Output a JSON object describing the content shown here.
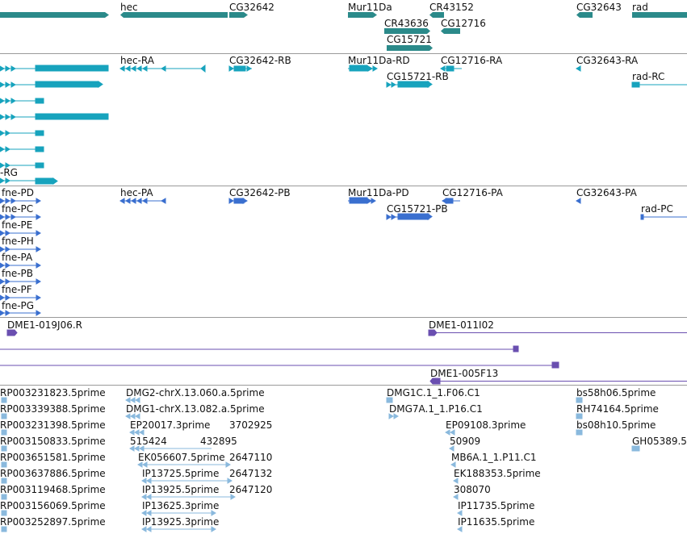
{
  "colors": {
    "gene": "#2b8a8a",
    "transcript_rna": "#17a3bd",
    "transcript_protein": "#3a6fcf",
    "cdna": "#6a4fb0",
    "est": "#8ab9dd",
    "divider": "#9a9a9a"
  },
  "gene_track": {
    "labels": [
      "hec",
      "CG32642",
      "Mur11Da",
      "CR43152",
      "CG32643",
      "rad",
      "CR43636",
      "CG12716",
      "CG15721"
    ]
  },
  "rna_track": {
    "labels": [
      "hec-RA",
      "CG32642-RB",
      "Mur11Da-RD",
      "CG12716-RA",
      "CG32643-RA",
      "CG15721-RB",
      "rad-RC",
      "-RG"
    ]
  },
  "protein_track": {
    "labels": [
      "fne-PD",
      "hec-PA",
      "CG32642-PB",
      "Mur11Da-PD",
      "CG12716-PA",
      "CG32643-PA",
      "fne-PC",
      "CG15721-PB",
      "rad-PC",
      "fne-PE",
      "fne-PH",
      "fne-PA",
      "fne-PB",
      "fne-PF",
      "fne-PG"
    ]
  },
  "cdna_track": {
    "labels": [
      "DME1-019J06.R",
      "DME1-011I02",
      "DME1-005F13"
    ]
  },
  "est_track": {
    "labels": [
      "RP003231823.5prime",
      "DMG2-chrX.13.060.a.5prime",
      "DMG1C.1_1.F06.C1",
      "bs58h06.5prime",
      "RP003339388.5prime",
      "DMG1-chrX.13.082.a.5prime",
      "DMG7A.1_1.P16.C1",
      "RH74164.5prime",
      "RP003231398.5prime",
      "EP20017.3prime",
      "3702925",
      "EP09108.3prime",
      "bs08h10.5prime",
      "RP003150833.5prime",
      "515424",
      "432895",
      "50909",
      "GH05389.5",
      "RP003651581.5prime",
      "EK056607.5prime",
      "2647110",
      "MB6A.1_1.P11.C1",
      "RP003637886.5prime",
      "IP13725.5prime",
      "2647132",
      "EK188353.5prime",
      "RP003119468.5prime",
      "IP13925.5prime",
      "2647120",
      "308070",
      "RP003156069.5prime",
      "IP13625.3prime",
      "IP11735.5prime",
      "RP003252897.5prime",
      "IP13925.3prime",
      "IP11635.5prime"
    ]
  }
}
